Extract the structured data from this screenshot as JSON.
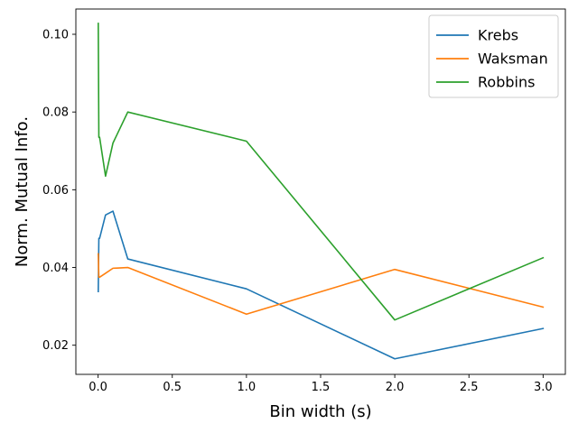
{
  "chart_data": {
    "type": "line",
    "title": "",
    "xlabel": "Bin width (s)",
    "ylabel": "Norm. Mutual Info.",
    "xlim": [
      -0.15,
      3.15
    ],
    "ylim": [
      0.0125,
      0.1065
    ],
    "xticks": [
      0.0,
      0.5,
      1.0,
      1.5,
      2.0,
      2.5,
      3.0
    ],
    "xtick_labels": [
      "0.0",
      "0.5",
      "1.0",
      "1.5",
      "2.0",
      "2.5",
      "3.0"
    ],
    "yticks": [
      0.02,
      0.04,
      0.06,
      0.08,
      0.1
    ],
    "ytick_labels": [
      "0.02",
      "0.04",
      "0.06",
      "0.08",
      "0.10"
    ],
    "grid": false,
    "legend_position": "top-right",
    "series": [
      {
        "name": "Krebs",
        "color": "#1f77b4",
        "x": [
          0.001,
          0.005,
          0.01,
          0.05,
          0.1,
          0.2,
          1.0,
          2.0,
          3.0
        ],
        "y": [
          0.0338,
          0.0475,
          0.0475,
          0.0535,
          0.0545,
          0.0422,
          0.0345,
          0.0165,
          0.0243
        ]
      },
      {
        "name": "Waksman",
        "color": "#ff7f0e",
        "x": [
          0.001,
          0.005,
          0.01,
          0.05,
          0.1,
          0.2,
          1.0,
          2.0,
          3.0
        ],
        "y": [
          0.0435,
          0.0375,
          0.0375,
          0.0385,
          0.0398,
          0.04,
          0.028,
          0.0395,
          0.0298
        ]
      },
      {
        "name": "Robbins",
        "color": "#2ca02c",
        "x": [
          0.001,
          0.005,
          0.01,
          0.05,
          0.1,
          0.2,
          1.0,
          2.0,
          3.0
        ],
        "y": [
          0.1028,
          0.0735,
          0.0735,
          0.0635,
          0.072,
          0.08,
          0.0725,
          0.0265,
          0.0425
        ]
      }
    ]
  }
}
